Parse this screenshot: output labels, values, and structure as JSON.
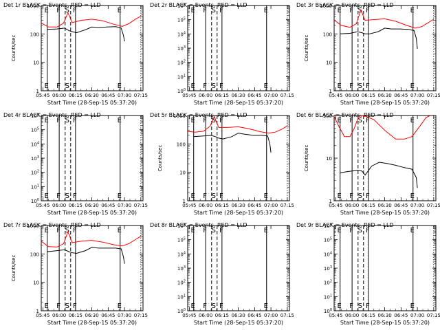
{
  "chart_data": [
    {
      "type": "line",
      "title": "Det 1r BLACK = Events, RED = LLD",
      "xlabel": "Start Time (28-Sep-15 05:37:20)",
      "ylabel": "Counts/sec",
      "yscale": "log",
      "ylim": [
        1,
        1000
      ],
      "y_ticks": [
        "1",
        "10",
        "100",
        "1000"
      ],
      "x_ticks": [
        "05:45",
        "06:00",
        "06:15",
        "06:30",
        "06:45",
        "07:00",
        "07:15"
      ],
      "markers": [
        {
          "label": "E",
          "x": "05:49"
        },
        {
          "label": "F",
          "x": "06:00"
        },
        {
          "label": "S",
          "x": "06:08"
        },
        {
          "label": "F",
          "x": "06:15"
        },
        {
          "label": "E",
          "x": "06:56"
        }
      ],
      "series": [
        {
          "color": "#ff0000",
          "x": [
            "05:43",
            "05:50",
            "05:58",
            "06:04",
            "06:08",
            "06:12",
            "06:20",
            "06:30",
            "06:40",
            "06:50",
            "06:58",
            "07:04",
            "07:10",
            "07:15"
          ],
          "values": [
            250,
            175,
            175,
            240,
            550,
            250,
            300,
            330,
            290,
            220,
            185,
            230,
            330,
            420
          ]
        },
        {
          "color": "#000000",
          "x": [
            "05:49",
            "05:58",
            "06:05",
            "06:09",
            "06:12",
            "06:16",
            "06:24",
            "06:30",
            "06:36",
            "06:44",
            "06:52",
            "06:57",
            "06:59",
            "07:00"
          ],
          "values": [
            145,
            150,
            160,
            130,
            120,
            110,
            140,
            175,
            165,
            175,
            180,
            160,
            90,
            55
          ]
        }
      ]
    },
    {
      "type": "line",
      "title": "Det 2r BLACK = Events, RED = LLD",
      "xlabel": "Start Time (28-Sep-15 05:37:20)",
      "ylabel": "",
      "yscale": "log",
      "ylim": [
        1,
        1000000
      ],
      "y_ticks": [
        "10^0",
        "10^1",
        "10^2",
        "10^3",
        "10^4",
        "10^5",
        "10^6"
      ],
      "x_ticks": [
        "05:45",
        "06:00",
        "06:15",
        "06:30",
        "06:45",
        "07:00",
        "07:15"
      ],
      "markers": [
        {
          "label": "E",
          "x": "05:49"
        },
        {
          "label": "F",
          "x": "06:00"
        },
        {
          "label": "S",
          "x": "06:08"
        },
        {
          "label": "F",
          "x": "06:15"
        },
        {
          "label": "E",
          "x": "06:56"
        }
      ],
      "series": []
    },
    {
      "type": "line",
      "title": "Det 3r BLACK = Events, RED = LLD",
      "xlabel": "Start Time (28-Sep-15 05:37:20)",
      "ylabel": "Counts/sec",
      "yscale": "log",
      "ylim": [
        1,
        1000
      ],
      "y_ticks": [
        "1",
        "10",
        "100",
        "1000"
      ],
      "x_ticks": [
        "05:45",
        "06:00",
        "06:15",
        "06:30",
        "06:45",
        "07:00",
        "07:15"
      ],
      "markers": [
        {
          "label": "E",
          "x": "05:49"
        },
        {
          "label": "F",
          "x": "06:00"
        },
        {
          "label": "S",
          "x": "06:08"
        },
        {
          "label": "F",
          "x": "06:15"
        },
        {
          "label": "E",
          "x": "06:56"
        }
      ],
      "series": [
        {
          "color": "#ff0000",
          "x": [
            "05:43",
            "05:50",
            "05:58",
            "06:04",
            "06:08",
            "06:12",
            "06:20",
            "06:30",
            "06:40",
            "06:50",
            "06:58",
            "07:04",
            "07:10",
            "07:15"
          ],
          "values": [
            320,
            200,
            170,
            230,
            700,
            300,
            320,
            340,
            280,
            200,
            160,
            180,
            250,
            330
          ]
        },
        {
          "color": "#000000",
          "x": [
            "05:49",
            "05:58",
            "06:05",
            "06:09",
            "06:12",
            "06:16",
            "06:24",
            "06:30",
            "06:36",
            "06:44",
            "06:52",
            "06:57",
            "06:59",
            "07:00"
          ],
          "values": [
            100,
            105,
            120,
            110,
            100,
            100,
            120,
            160,
            150,
            150,
            145,
            130,
            70,
            30
          ]
        }
      ]
    },
    {
      "type": "line",
      "title": "Det 4r BLACK = Events, RED = LLD",
      "xlabel": "Start Time (28-Sep-15 05:37:20)",
      "ylabel": "",
      "yscale": "log",
      "ylim": [
        1,
        1000000
      ],
      "y_ticks": [
        "10^0",
        "10^1",
        "10^2",
        "10^3",
        "10^4",
        "10^5",
        "10^6"
      ],
      "x_ticks": [
        "05:45",
        "06:00",
        "06:15",
        "06:30",
        "06:45",
        "07:00",
        "07:15"
      ],
      "markers": [
        {
          "label": "E",
          "x": "05:49"
        },
        {
          "label": "F",
          "x": "06:00"
        },
        {
          "label": "S",
          "x": "06:08"
        },
        {
          "label": "F",
          "x": "06:15"
        },
        {
          "label": "E",
          "x": "06:56"
        }
      ],
      "series": []
    },
    {
      "type": "line",
      "title": "Det 5r BLACK = Events, RED = LLD",
      "xlabel": "Start Time (28-Sep-15 05:37:20)",
      "ylabel": "Counts/sec",
      "yscale": "log",
      "ylim": [
        1,
        1000
      ],
      "y_ticks": [
        "1",
        "10",
        "100",
        "1000"
      ],
      "x_ticks": [
        "05:45",
        "06:00",
        "06:15",
        "06:30",
        "06:45",
        "07:00",
        "07:15"
      ],
      "markers": [
        {
          "label": "E",
          "x": "05:49"
        },
        {
          "label": "F",
          "x": "06:00"
        },
        {
          "label": "S",
          "x": "06:08"
        },
        {
          "label": "F",
          "x": "06:15"
        },
        {
          "label": "E",
          "x": "06:56"
        }
      ],
      "series": [
        {
          "color": "#ff0000",
          "x": [
            "05:43",
            "05:50",
            "05:58",
            "06:04",
            "06:08",
            "06:12",
            "06:20",
            "06:30",
            "06:40",
            "06:50",
            "06:58",
            "07:04",
            "07:10",
            "07:15"
          ],
          "values": [
            280,
            260,
            280,
            420,
            900,
            380,
            380,
            400,
            340,
            270,
            240,
            260,
            330,
            430
          ]
        },
        {
          "color": "#000000",
          "x": [
            "05:49",
            "05:58",
            "06:05",
            "06:09",
            "06:12",
            "06:16",
            "06:24",
            "06:30",
            "06:36",
            "06:44",
            "06:52",
            "06:57",
            "06:59",
            "07:00"
          ],
          "values": [
            180,
            190,
            200,
            180,
            160,
            150,
            180,
            240,
            220,
            200,
            200,
            190,
            100,
            50
          ]
        }
      ]
    },
    {
      "type": "line",
      "title": "Det 6r BLACK = Events, RED = LLD",
      "xlabel": "Start Time (28-Sep-15 05:37:20)",
      "ylabel": "Counts/sec",
      "yscale": "log",
      "ylim": [
        1,
        100
      ],
      "y_ticks": [
        "1",
        "10",
        "100"
      ],
      "x_ticks": [
        "05:45",
        "06:00",
        "06:15",
        "06:30",
        "06:45",
        "07:00",
        "07:15"
      ],
      "markers": [
        {
          "label": "E",
          "x": "05:49"
        },
        {
          "label": "F",
          "x": "06:00"
        },
        {
          "label": "S",
          "x": "06:08"
        },
        {
          "label": "F",
          "x": "06:15"
        },
        {
          "label": "E",
          "x": "06:56"
        }
      ],
      "series": [
        {
          "color": "#ff0000",
          "x": [
            "05:43",
            "05:48",
            "05:53",
            "05:58",
            "06:02",
            "06:06",
            "06:09",
            "06:13",
            "06:20",
            "06:30",
            "06:40",
            "06:48",
            "06:55",
            "07:02",
            "07:08",
            "07:12"
          ],
          "values": [
            100,
            55,
            32,
            32,
            50,
            95,
            100,
            95,
            80,
            45,
            28,
            28,
            32,
            55,
            90,
            100
          ]
        },
        {
          "color": "#000000",
          "x": [
            "05:49",
            "05:55",
            "06:00",
            "06:05",
            "06:09",
            "06:12",
            "06:18",
            "06:25",
            "06:32",
            "06:40",
            "06:48",
            "06:55",
            "06:59",
            "07:00"
          ],
          "values": [
            4.5,
            4.8,
            5.0,
            5.2,
            5.0,
            4.0,
            6.5,
            8.0,
            7.5,
            6.8,
            6.0,
            5.5,
            3.5,
            2.0
          ]
        }
      ]
    },
    {
      "type": "line",
      "title": "Det 7r BLACK = Events, RED = LLD",
      "xlabel": "Start Time (28-Sep-15 05:37:20)",
      "ylabel": "Counts/sec",
      "yscale": "log",
      "ylim": [
        1,
        1000
      ],
      "y_ticks": [
        "1",
        "10",
        "100",
        "1000"
      ],
      "x_ticks": [
        "05:45",
        "06:00",
        "06:15",
        "06:30",
        "06:45",
        "07:00",
        "07:15"
      ],
      "markers": [
        {
          "label": "E",
          "x": "05:49"
        },
        {
          "label": "F",
          "x": "06:00"
        },
        {
          "label": "S",
          "x": "06:08"
        },
        {
          "label": "F",
          "x": "06:15"
        },
        {
          "label": "E",
          "x": "06:56"
        }
      ],
      "series": [
        {
          "color": "#ff0000",
          "x": [
            "05:43",
            "05:50",
            "05:58",
            "06:04",
            "06:08",
            "06:12",
            "06:20",
            "06:30",
            "06:40",
            "06:50",
            "06:58",
            "07:04",
            "07:10",
            "07:15"
          ],
          "values": [
            290,
            180,
            175,
            230,
            600,
            250,
            280,
            300,
            260,
            210,
            190,
            230,
            320,
            420
          ]
        },
        {
          "color": "#000000",
          "x": [
            "05:49",
            "05:58",
            "06:05",
            "06:09",
            "06:12",
            "06:16",
            "06:24",
            "06:30",
            "06:36",
            "06:44",
            "06:52",
            "06:57",
            "06:59",
            "07:00"
          ],
          "values": [
            120,
            130,
            140,
            120,
            110,
            105,
            130,
            170,
            160,
            160,
            160,
            150,
            80,
            45
          ]
        }
      ]
    },
    {
      "type": "line",
      "title": "Det 8r BLACK = Events, RED = LLD",
      "xlabel": "Start Time (28-Sep-15 05:37:20)",
      "ylabel": "",
      "yscale": "log",
      "ylim": [
        1,
        1000000
      ],
      "y_ticks": [
        "10^0",
        "10^1",
        "10^2",
        "10^3",
        "10^4",
        "10^5",
        "10^6"
      ],
      "x_ticks": [
        "05:45",
        "06:00",
        "06:15",
        "06:30",
        "06:45",
        "07:00",
        "07:15"
      ],
      "markers": [
        {
          "label": "E",
          "x": "05:49"
        },
        {
          "label": "F",
          "x": "06:00"
        },
        {
          "label": "S",
          "x": "06:08"
        },
        {
          "label": "F",
          "x": "06:15"
        },
        {
          "label": "E",
          "x": "06:56"
        }
      ],
      "series": []
    },
    {
      "type": "line",
      "title": "Det 9r BLACK = Events, RED = LLD",
      "xlabel": "Start Time (28-Sep-15 05:37:20)",
      "ylabel": "",
      "yscale": "log",
      "ylim": [
        1,
        1000000
      ],
      "y_ticks": [
        "10^0",
        "10^1",
        "10^2",
        "10^3",
        "10^4",
        "10^5",
        "10^6"
      ],
      "x_ticks": [
        "05:45",
        "06:00",
        "06:15",
        "06:30",
        "06:45",
        "07:00",
        "07:15"
      ],
      "markers": [
        {
          "label": "E",
          "x": "05:49"
        },
        {
          "label": "F",
          "x": "06:00"
        },
        {
          "label": "S",
          "x": "06:08"
        },
        {
          "label": "F",
          "x": "06:15"
        },
        {
          "label": "E",
          "x": "06:56"
        }
      ],
      "series": []
    }
  ]
}
